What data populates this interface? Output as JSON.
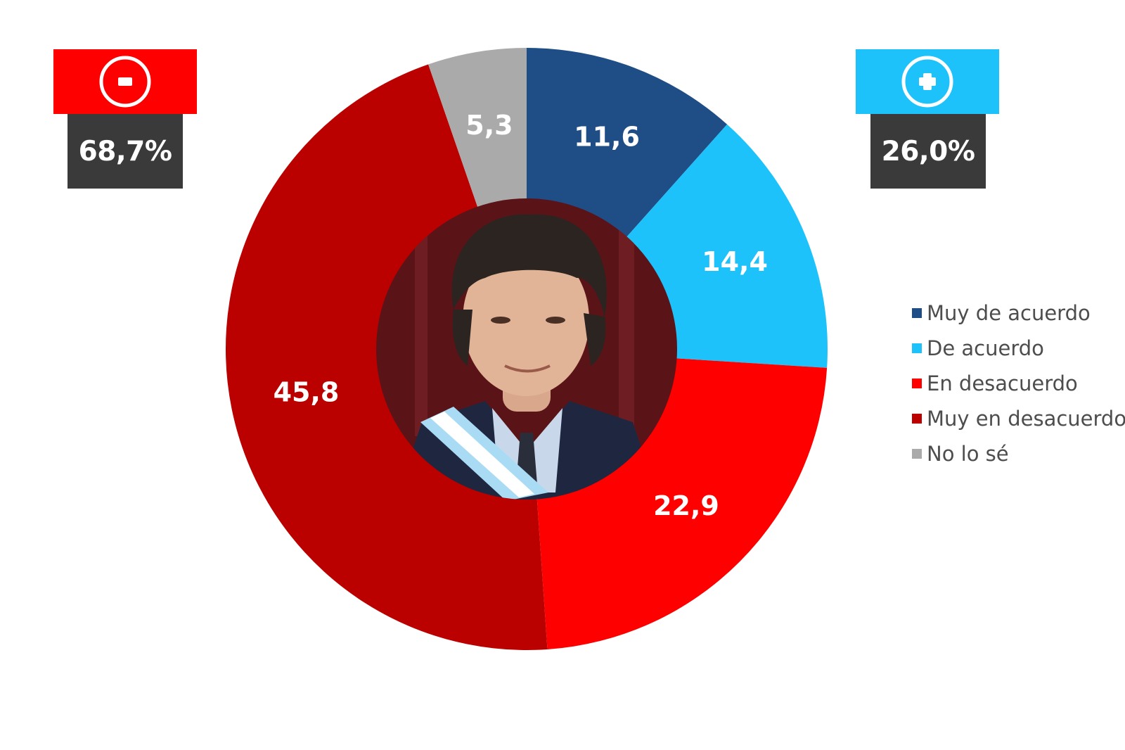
{
  "chart_data": {
    "type": "pie",
    "donut": true,
    "slices": [
      {
        "label": "Muy de acuerdo",
        "value": 11.6,
        "display": "11,6",
        "color": "#1f4e87"
      },
      {
        "label": "De acuerdo",
        "value": 14.4,
        "display": "14,4",
        "color": "#1ec2fb"
      },
      {
        "label": "En desacuerdo",
        "value": 22.9,
        "display": "22,9",
        "color": "#fe0000"
      },
      {
        "label": "Muy en desacuerdo",
        "value": 45.8,
        "display": "45,8",
        "color": "#bb0000"
      },
      {
        "label": "No lo sé",
        "value": 5.3,
        "display": "5,3",
        "color": "#aaaaaa"
      }
    ],
    "legend_position": "right",
    "center_image": "portrait-photo"
  },
  "badges": {
    "negative": {
      "icon": "minus-circle-icon",
      "value": "68,7%",
      "color": "#fe0000"
    },
    "positive": {
      "icon": "plus-circle-icon",
      "value": "26,0%",
      "color": "#1ec2fb"
    }
  },
  "legend": [
    {
      "label": "Muy de acuerdo",
      "color": "#1f4e87"
    },
    {
      "label": "De acuerdo",
      "color": "#1ec2fb"
    },
    {
      "label": "En desacuerdo",
      "color": "#fe0000"
    },
    {
      "label": "Muy en desacuerdo",
      "color": "#bb0000"
    },
    {
      "label": "No lo sé",
      "color": "#aaaaaa"
    }
  ]
}
